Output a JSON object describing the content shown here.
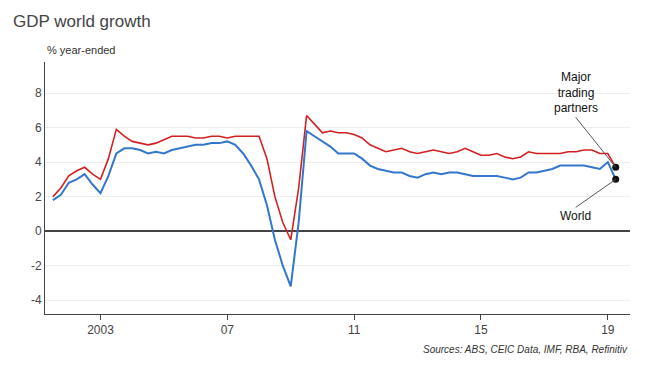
{
  "chart_data": {
    "type": "line",
    "title": "GDP world growth",
    "ylabel": "% year-ended",
    "annotations": [
      "Sources: ABS, CEIC Data, IMF, RBA, Refinitiv"
    ],
    "x": [
      2001.5,
      2001.75,
      2002.0,
      2002.25,
      2002.5,
      2002.75,
      2003.0,
      2003.25,
      2003.5,
      2003.75,
      2004.0,
      2004.25,
      2004.5,
      2004.75,
      2005.0,
      2005.25,
      2005.5,
      2005.75,
      2006.0,
      2006.25,
      2006.5,
      2006.75,
      2007.0,
      2007.25,
      2007.5,
      2007.75,
      2008.0,
      2008.25,
      2008.5,
      2008.75,
      2009.0,
      2009.25,
      2009.5,
      2009.75,
      2010.0,
      2010.25,
      2010.5,
      2010.75,
      2011.0,
      2011.25,
      2011.5,
      2011.75,
      2012.0,
      2012.25,
      2012.5,
      2012.75,
      2013.0,
      2013.25,
      2013.5,
      2013.75,
      2014.0,
      2014.25,
      2014.5,
      2014.75,
      2015.0,
      2015.25,
      2015.5,
      2015.75,
      2016.0,
      2016.25,
      2016.5,
      2016.75,
      2017.0,
      2017.25,
      2017.5,
      2017.75,
      2018.0,
      2018.25,
      2018.5,
      2018.75,
      2019.0,
      2019.25
    ],
    "series": [
      {
        "name": "Major\ntrading\npartners",
        "color": "#d42020",
        "values": [
          2.0,
          2.5,
          3.2,
          3.5,
          3.7,
          3.3,
          3.0,
          4.2,
          5.9,
          5.5,
          5.2,
          5.1,
          5.0,
          5.1,
          5.3,
          5.5,
          5.5,
          5.5,
          5.4,
          5.4,
          5.5,
          5.5,
          5.4,
          5.5,
          5.5,
          5.5,
          5.5,
          4.2,
          2.0,
          0.5,
          -0.5,
          2.5,
          6.7,
          6.2,
          5.7,
          5.8,
          5.7,
          5.7,
          5.6,
          5.4,
          5.0,
          4.8,
          4.6,
          4.7,
          4.8,
          4.6,
          4.5,
          4.6,
          4.7,
          4.6,
          4.5,
          4.6,
          4.8,
          4.6,
          4.4,
          4.4,
          4.5,
          4.3,
          4.2,
          4.3,
          4.6,
          4.5,
          4.5,
          4.5,
          4.5,
          4.6,
          4.6,
          4.7,
          4.7,
          4.5,
          4.5,
          3.7
        ]
      },
      {
        "name": "World",
        "color": "#3377cc",
        "values": [
          1.8,
          2.1,
          2.8,
          3.0,
          3.3,
          2.7,
          2.2,
          3.2,
          4.5,
          4.8,
          4.8,
          4.7,
          4.5,
          4.6,
          4.5,
          4.7,
          4.8,
          4.9,
          5.0,
          5.0,
          5.1,
          5.1,
          5.2,
          5.0,
          4.5,
          3.8,
          3.0,
          1.5,
          -0.5,
          -2.0,
          -3.2,
          0.5,
          5.8,
          5.5,
          5.2,
          4.9,
          4.5,
          4.5,
          4.5,
          4.2,
          3.8,
          3.6,
          3.5,
          3.4,
          3.4,
          3.2,
          3.1,
          3.3,
          3.4,
          3.3,
          3.4,
          3.4,
          3.3,
          3.2,
          3.2,
          3.2,
          3.2,
          3.1,
          3.0,
          3.1,
          3.4,
          3.4,
          3.5,
          3.6,
          3.8,
          3.8,
          3.8,
          3.8,
          3.7,
          3.6,
          4.0,
          3.0
        ]
      }
    ],
    "xlim": [
      2001.25,
      2019.7
    ],
    "xticks": [
      2003,
      {
        "value": 2007,
        "label": "07"
      },
      {
        "value": 2011,
        "label": "11"
      },
      {
        "value": 2015,
        "label": "15"
      },
      {
        "value": 2019,
        "label": "19"
      }
    ],
    "ylim": [
      -4.8,
      9.8
    ],
    "yticks": [
      -4,
      -2,
      0,
      2,
      4,
      6,
      8
    ],
    "grid": true
  }
}
